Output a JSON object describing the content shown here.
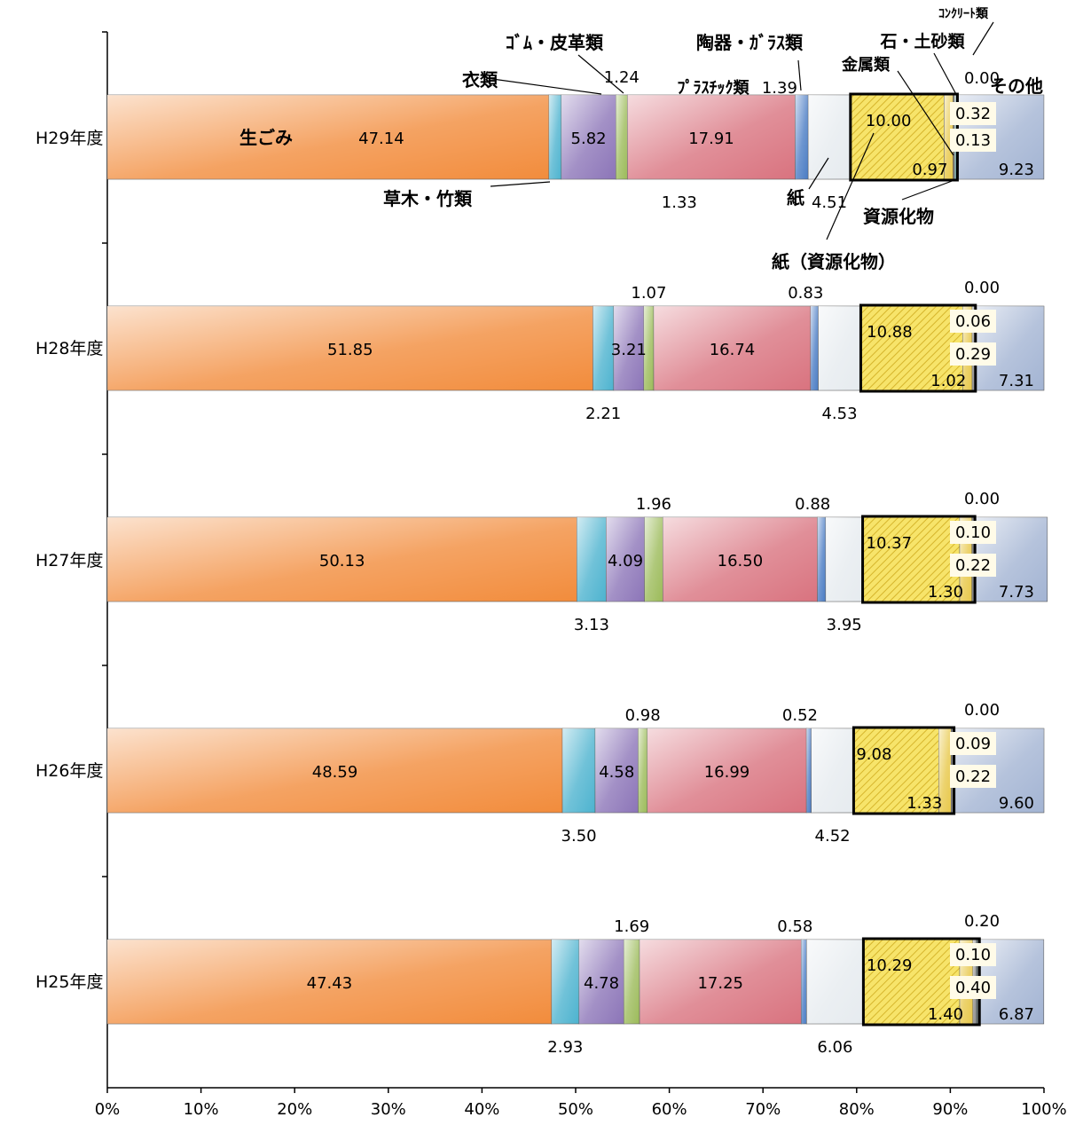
{
  "chart_data": {
    "type": "bar",
    "orientation": "horizontal",
    "stacked": true,
    "percent_scale": true,
    "title": "",
    "xlabel": "",
    "ylabel": "",
    "xlim": [
      0,
      100
    ],
    "x_ticks": [
      "0%",
      "10%",
      "20%",
      "30%",
      "40%",
      "50%",
      "60%",
      "70%",
      "80%",
      "90%",
      "100%"
    ],
    "grid": false,
    "categories": [
      "H29年度",
      "H28年度",
      "H27年度",
      "H26年度",
      "H25年度"
    ],
    "series": [
      {
        "key": "namagomi",
        "name": "生ごみ",
        "color": "#f28c3c",
        "values": [
          47.14,
          51.85,
          50.13,
          48.59,
          47.43
        ]
      },
      {
        "key": "kusaki",
        "name": "草木・竹類",
        "color": "#4db3cf",
        "values": [
          1.33,
          2.21,
          3.13,
          3.5,
          2.93
        ]
      },
      {
        "key": "irui",
        "name": "衣類",
        "color": "#8c75b8",
        "values": [
          5.82,
          3.21,
          4.09,
          4.58,
          4.78
        ]
      },
      {
        "key": "gomu",
        "name": "ｺﾞﾑ・皮革類",
        "color": "#9cbb5a",
        "values": [
          1.24,
          1.07,
          1.96,
          0.98,
          1.69
        ]
      },
      {
        "key": "plastic",
        "name": "ﾌﾟﾗｽﾁｯｸ類",
        "color": "#d9737f",
        "values": [
          17.91,
          16.74,
          16.5,
          16.99,
          17.25
        ]
      },
      {
        "key": "toki",
        "name": "陶器・ｶﾞﾗｽ類",
        "color": "#4a7cc4",
        "values": [
          1.39,
          0.83,
          0.88,
          0.52,
          0.58
        ]
      },
      {
        "key": "kami",
        "name": "紙",
        "color": "#e6ebef",
        "values": [
          4.51,
          4.53,
          3.95,
          4.52,
          6.06
        ]
      },
      {
        "key": "kami_shigen",
        "name": "紙（資源化物）",
        "color": "#f5e05a",
        "values": [
          10.0,
          10.88,
          10.37,
          9.08,
          10.29
        ]
      },
      {
        "key": "shigen",
        "name": "資源化物",
        "color": "#e8c84a",
        "values": [
          0.97,
          1.02,
          1.3,
          1.33,
          1.4
        ]
      },
      {
        "key": "kinzoku",
        "name": "金属類",
        "color": "#8c8c8c",
        "values": [
          0.13,
          0.29,
          0.22,
          0.22,
          0.4
        ]
      },
      {
        "key": "ishi",
        "name": "石・土砂類",
        "color": "#6aa0a0",
        "values": [
          0.32,
          0.06,
          0.1,
          0.09,
          0.1
        ]
      },
      {
        "key": "concrete",
        "name": "ｺﾝｸﾘｰﾄ類",
        "color": "#b0b0b0",
        "values": [
          0.0,
          0.0,
          0.0,
          0.0,
          0.2
        ]
      },
      {
        "key": "sonota",
        "name": "その他",
        "color": "#a3b4d3",
        "values": [
          9.23,
          7.31,
          7.73,
          9.6,
          6.87
        ]
      }
    ],
    "value_labels": [
      [
        "47.14",
        "1.33",
        "5.82",
        "1.24",
        "17.91",
        "1.39",
        "4.51",
        "10.00",
        "0.97",
        "0.13",
        "0.32",
        "0.00",
        "9.23"
      ],
      [
        "51.85",
        "2.21",
        "3.21",
        "1.07",
        "16.74",
        "0.83",
        "4.53",
        "10.88",
        "1.02",
        "0.29",
        "0.06",
        "0.00",
        "7.31"
      ],
      [
        "50.13",
        "3.13",
        "4.09",
        "1.96",
        "16.50",
        "0.88",
        "3.95",
        "10.37",
        "1.30",
        "0.22",
        "0.10",
        "0.00",
        "7.73"
      ],
      [
        "48.59",
        "3.50",
        "4.58",
        "0.98",
        "16.99",
        "0.52",
        "4.52",
        "9.08",
        "1.33",
        "0.22",
        "0.09",
        "0.00",
        "9.60"
      ],
      [
        "47.43",
        "2.93",
        "4.78",
        "1.69",
        "17.25",
        "0.58",
        "6.06",
        "10.29",
        "1.40",
        "0.40",
        "0.10",
        "0.20",
        "6.87"
      ]
    ]
  }
}
